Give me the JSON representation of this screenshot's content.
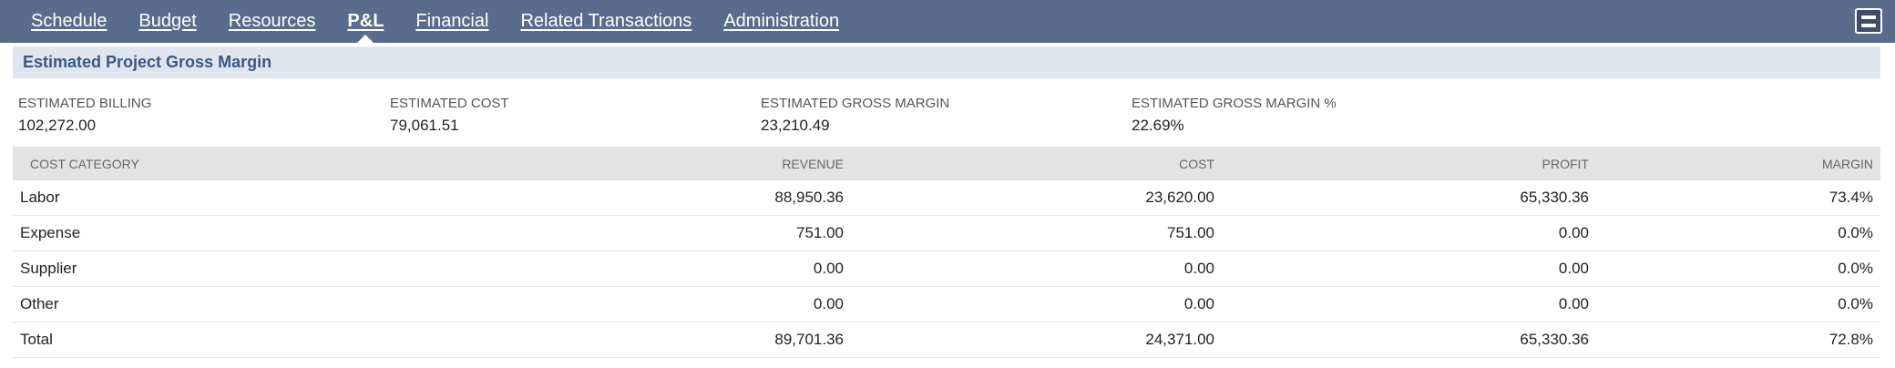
{
  "tabs": [
    {
      "label": "Schedule"
    },
    {
      "label": "Budget"
    },
    {
      "label": "Resources"
    },
    {
      "label": "P&L",
      "active": true
    },
    {
      "label": "Financial"
    },
    {
      "label": "Related Transactions"
    },
    {
      "label": "Administration"
    }
  ],
  "menu_icon": "list-view-icon",
  "section": {
    "title": "Estimated Project Gross Margin"
  },
  "summary": [
    {
      "label": "ESTIMATED BILLING",
      "value": "102,272.00"
    },
    {
      "label": "ESTIMATED COST",
      "value": "79,061.51"
    },
    {
      "label": "ESTIMATED GROSS MARGIN",
      "value": "23,210.49"
    },
    {
      "label": "ESTIMATED GROSS MARGIN %",
      "value": "22.69%"
    }
  ],
  "table": {
    "headers": [
      "COST CATEGORY",
      "REVENUE",
      "COST",
      "PROFIT",
      "MARGIN"
    ],
    "rows": [
      [
        "Labor",
        "88,950.36",
        "23,620.00",
        "65,330.36",
        "73.4%"
      ],
      [
        "Expense",
        "751.00",
        "751.00",
        "0.00",
        "0.0%"
      ],
      [
        "Supplier",
        "0.00",
        "0.00",
        "0.00",
        "0.0%"
      ],
      [
        "Other",
        "0.00",
        "0.00",
        "0.00",
        "0.0%"
      ],
      [
        "Total",
        "89,701.36",
        "24,371.00",
        "65,330.36",
        "72.8%"
      ]
    ]
  }
}
